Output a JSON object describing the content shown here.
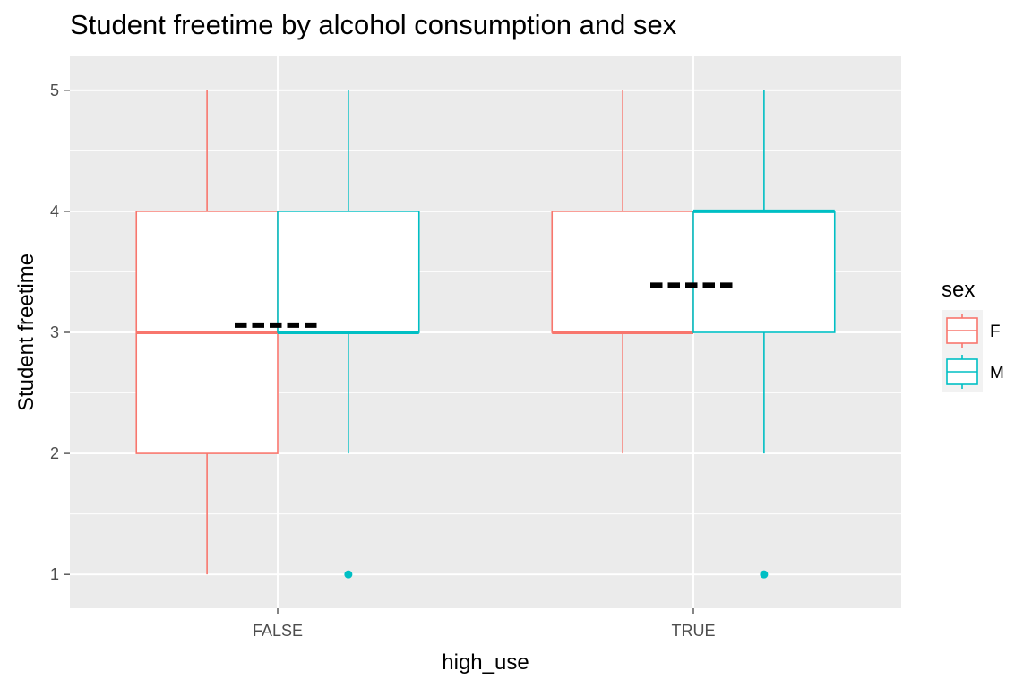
{
  "chart_data": {
    "type": "boxplot",
    "title": "Student freetime by alcohol consumption and sex",
    "xlabel": "high_use",
    "ylabel": "Student freetime",
    "categories": [
      "FALSE",
      "TRUE"
    ],
    "ylim": [
      0.72,
      5.28
    ],
    "yticks": [
      1,
      2,
      3,
      4,
      5
    ],
    "grid": true,
    "panel_background": "#ebebeb",
    "legend": {
      "title": "sex",
      "position": "right",
      "entries": [
        "F",
        "M"
      ]
    },
    "series": [
      {
        "name": "F",
        "color": "#f8766d",
        "boxes": [
          {
            "category": "FALSE",
            "whisker_low": 1,
            "q1": 2,
            "median": 3,
            "q3": 4,
            "whisker_high": 5,
            "outliers": []
          },
          {
            "category": "TRUE",
            "whisker_low": 2,
            "q1": 3,
            "median": 3,
            "q3": 4,
            "whisker_high": 5,
            "outliers": []
          }
        ]
      },
      {
        "name": "M",
        "color": "#00bfc4",
        "boxes": [
          {
            "category": "FALSE",
            "whisker_low": 2,
            "q1": 3,
            "median": 3,
            "q3": 4,
            "whisker_high": 5,
            "outliers": [
              1
            ]
          },
          {
            "category": "TRUE",
            "whisker_low": 2,
            "q1": 3,
            "median": 4,
            "q3": 4,
            "whisker_high": 5,
            "outliers": [
              1
            ]
          }
        ]
      }
    ],
    "mean_markers": [
      {
        "category": "FALSE",
        "value": 3.06,
        "style": "dashed",
        "color": "#000000"
      },
      {
        "category": "TRUE",
        "value": 3.39,
        "style": "dashed",
        "color": "#000000"
      }
    ]
  }
}
